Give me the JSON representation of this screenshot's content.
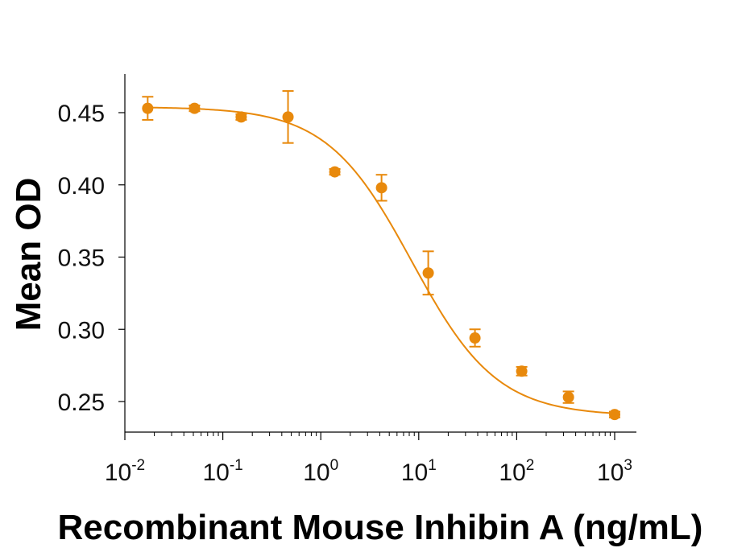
{
  "chart_data": {
    "type": "scatter",
    "title": "",
    "xlabel": "Recombinant Mouse Inhibin A (ng/mL)",
    "ylabel": "Mean OD",
    "x_scale": "log",
    "xlim": [
      0.01,
      1000
    ],
    "ylim": [
      0.23,
      0.48
    ],
    "x_ticks": [
      0.01,
      0.1,
      1,
      10,
      100,
      1000
    ],
    "x_tick_labels": [
      {
        "base": "10",
        "exp": "-2"
      },
      {
        "base": "10",
        "exp": "-1"
      },
      {
        "base": "10",
        "exp": "0"
      },
      {
        "base": "10",
        "exp": "1"
      },
      {
        "base": "10",
        "exp": "2"
      },
      {
        "base": "10",
        "exp": "3"
      }
    ],
    "y_ticks": [
      0.25,
      0.3,
      0.35,
      0.4,
      0.45
    ],
    "y_tick_labels": [
      "0.25",
      "0.30",
      "0.35",
      "0.40",
      "0.45"
    ],
    "grid": false,
    "legend": "none",
    "color": "#E8890C",
    "series": [
      {
        "points": [
          {
            "x": 0.0171,
            "y": 0.453,
            "err": 0.008
          },
          {
            "x": 0.0514,
            "y": 0.453,
            "err": 0.002
          },
          {
            "x": 0.154,
            "y": 0.447,
            "err": 0.002
          },
          {
            "x": 0.463,
            "y": 0.447,
            "err": 0.018
          },
          {
            "x": 1.39,
            "y": 0.409,
            "err": 0.002
          },
          {
            "x": 4.17,
            "y": 0.398,
            "err": 0.009
          },
          {
            "x": 12.5,
            "y": 0.339,
            "err": 0.015
          },
          {
            "x": 37.5,
            "y": 0.294,
            "err": 0.006
          },
          {
            "x": 112.5,
            "y": 0.271,
            "err": 0.003
          },
          {
            "x": 337.5,
            "y": 0.253,
            "err": 0.004
          },
          {
            "x": 1000,
            "y": 0.241,
            "err": 0.002
          }
        ],
        "fit": {
          "model": "4PL",
          "top": 0.454,
          "bottom": 0.24,
          "ec50": 8.5,
          "hill": 1.0
        }
      }
    ]
  }
}
